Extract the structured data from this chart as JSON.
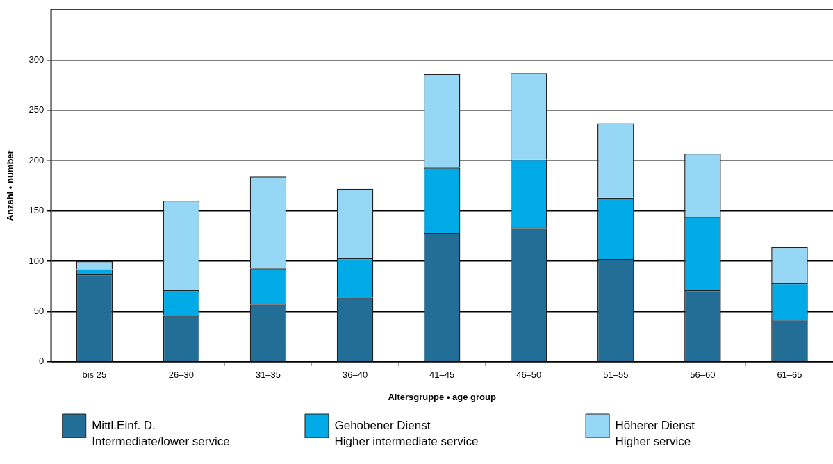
{
  "chart_data": {
    "type": "bar",
    "stacked": true,
    "xlabel": "Altersgruppe • age group",
    "ylabel": "Anzahl • number",
    "categories": [
      "bis 25",
      "26–30",
      "31–35",
      "36–40",
      "41–45",
      "46–50",
      "51–55",
      "56–60",
      "61–65"
    ],
    "series": [
      {
        "name": "Mittl.Einf. D.\nIntermediate/lower service",
        "color": "#226e96",
        "values": [
          87,
          46,
          57,
          64,
          128,
          133,
          102,
          71,
          42
        ]
      },
      {
        "name": "Gehobener Dienst\nHigher intermediate service",
        "color": "#00aae6",
        "values": [
          5,
          25,
          36,
          39,
          65,
          68,
          61,
          73,
          36
        ]
      },
      {
        "name": "Höherer Dienst\nHigher service",
        "color": "#96d7f5",
        "values": [
          8,
          89,
          91,
          69,
          93,
          86,
          74,
          63,
          36
        ]
      }
    ],
    "ylim": [
      0,
      350
    ],
    "yticks": [
      0,
      50,
      100,
      150,
      200,
      250,
      300
    ],
    "grid": "y",
    "legend": "bottom"
  }
}
